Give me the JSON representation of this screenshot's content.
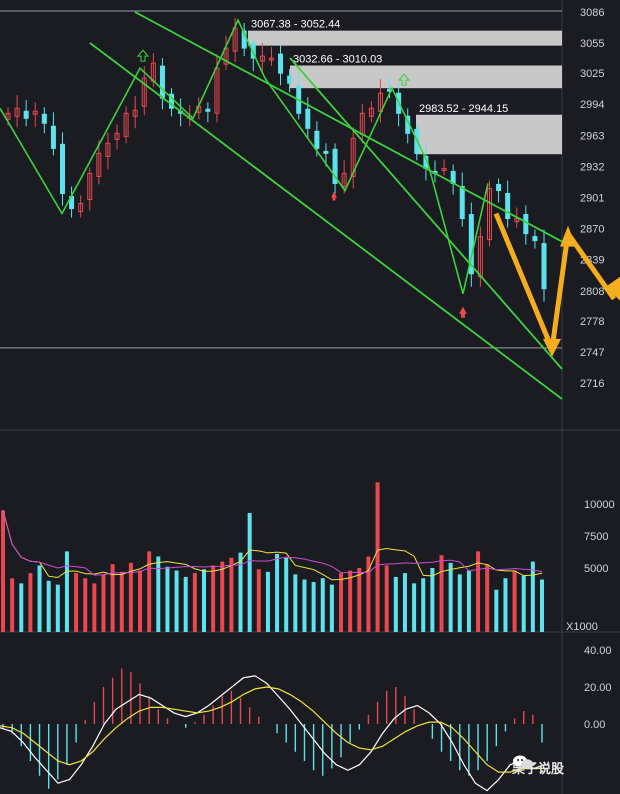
{
  "chart_data": [
    {
      "type": "candlestick",
      "title": "",
      "y_axis_ticks": [
        3086,
        3055,
        3025,
        2994,
        2963,
        2932,
        2901,
        2870,
        2839,
        2808,
        2778,
        2747,
        2716
      ],
      "ylim": [
        2700,
        3090
      ],
      "gap_zones": [
        {
          "label": "3067.38 - 3052.44",
          "high": 3067.38,
          "low": 3052.44
        },
        {
          "label": "3032.66 - 3010.03",
          "high": 3032.66,
          "low": 3010.03
        },
        {
          "label": "2983.52 - 2944.15",
          "high": 2983.52,
          "low": 2944.15
        }
      ],
      "horizontal_line": 2751,
      "wave_path_close": [
        2990,
        2885,
        3030,
        2980,
        3078,
        3020,
        2908,
        3010,
        2935,
        2805,
        2915
      ],
      "channel_upper": {
        "from": 3080,
        "to": 2865
      },
      "channel_lower": {
        "from": 3085,
        "to": 2725
      },
      "forecast_path": [
        2885,
        2750,
        2865,
        2800
      ],
      "candles_close_approx": [
        2985,
        2990,
        2980,
        2987,
        2975,
        2950,
        2905,
        2890,
        2895,
        2925,
        2945,
        2955,
        2965,
        2985,
        2988,
        3020,
        3035,
        3000,
        2990,
        2985,
        2982,
        2992,
        2988,
        3030,
        3050,
        3070,
        3050,
        3040,
        3042,
        3040,
        3025,
        3015,
        2985,
        2970,
        2950,
        2945,
        2915,
        2925,
        2960,
        2985,
        2990,
        3005,
        3008,
        2985,
        2965,
        2945,
        2930,
        2925,
        2930,
        2915,
        2880,
        2825,
        2862,
        2910,
        2908,
        2880,
        2880,
        2865,
        2858,
        2810
      ]
    },
    {
      "type": "bar",
      "title": "",
      "y_axis_ticks": [
        10000,
        7500,
        5000
      ],
      "unit_label": "X1000",
      "volume_values": [
        9500,
        4200,
        3800,
        4600,
        5200,
        4000,
        3700,
        6300,
        4600,
        4200,
        3800,
        4500,
        5300,
        4700,
        5400,
        4800,
        6300,
        5900,
        5100,
        4800,
        4300,
        4600,
        4900,
        5200,
        5500,
        5800,
        6200,
        9300,
        4900,
        4700,
        6100,
        5800,
        4500,
        4100,
        3900,
        4200,
        3700,
        4600,
        4800,
        5000,
        5900,
        11700,
        5200,
        4300,
        4600,
        3800,
        4200,
        5000,
        6000,
        5400,
        4500,
        4800,
        6300,
        5300,
        3300,
        4200,
        4800,
        4400,
        5500,
        4100
      ],
      "ma_lines": [
        "yellow",
        "magenta"
      ]
    },
    {
      "type": "bar",
      "title": "",
      "y_axis_ticks": [
        40,
        20,
        0
      ],
      "ylim": [
        -45,
        50
      ],
      "macd_hist": [
        -2,
        -5,
        -12,
        -20,
        -28,
        -35,
        -30,
        -22,
        -10,
        2,
        12,
        20,
        25,
        30,
        28,
        22,
        15,
        8,
        3,
        0,
        -2,
        1,
        5,
        10,
        15,
        18,
        14,
        9,
        4,
        0,
        -5,
        -10,
        -15,
        -20,
        -25,
        -28,
        -24,
        -18,
        -10,
        -3,
        5,
        12,
        18,
        20,
        15,
        8,
        0,
        -8,
        -15,
        -20,
        -25,
        -28,
        -25,
        -20,
        -12,
        -4,
        3,
        7,
        5,
        -10
      ],
      "dif_line": [
        -2,
        -4,
        -10,
        -18,
        -25,
        -32,
        -30,
        -22,
        -12,
        0,
        8,
        12,
        16,
        14,
        10,
        6,
        4,
        6,
        10,
        15,
        20,
        25,
        26,
        22,
        15,
        8,
        0,
        -8,
        -16,
        -22,
        -25,
        -22,
        -15,
        -5,
        3,
        8,
        10,
        6,
        0,
        -10,
        -22,
        -32,
        -36,
        -30,
        -22,
        -20,
        -24,
        -22
      ],
      "dea_line": [
        -1,
        -2,
        -5,
        -10,
        -15,
        -20,
        -22,
        -20,
        -15,
        -8,
        -2,
        3,
        7,
        9,
        9,
        8,
        7,
        6,
        7,
        9,
        12,
        16,
        19,
        20,
        19,
        16,
        12,
        7,
        1,
        -5,
        -10,
        -13,
        -14,
        -12,
        -8,
        -4,
        -1,
        1,
        1,
        -2,
        -8,
        -15,
        -22,
        -26,
        -26,
        -24,
        -24,
        -24
      ]
    }
  ],
  "watermark": {
    "text": "栗子说股",
    "icon": "wechat-icon"
  }
}
